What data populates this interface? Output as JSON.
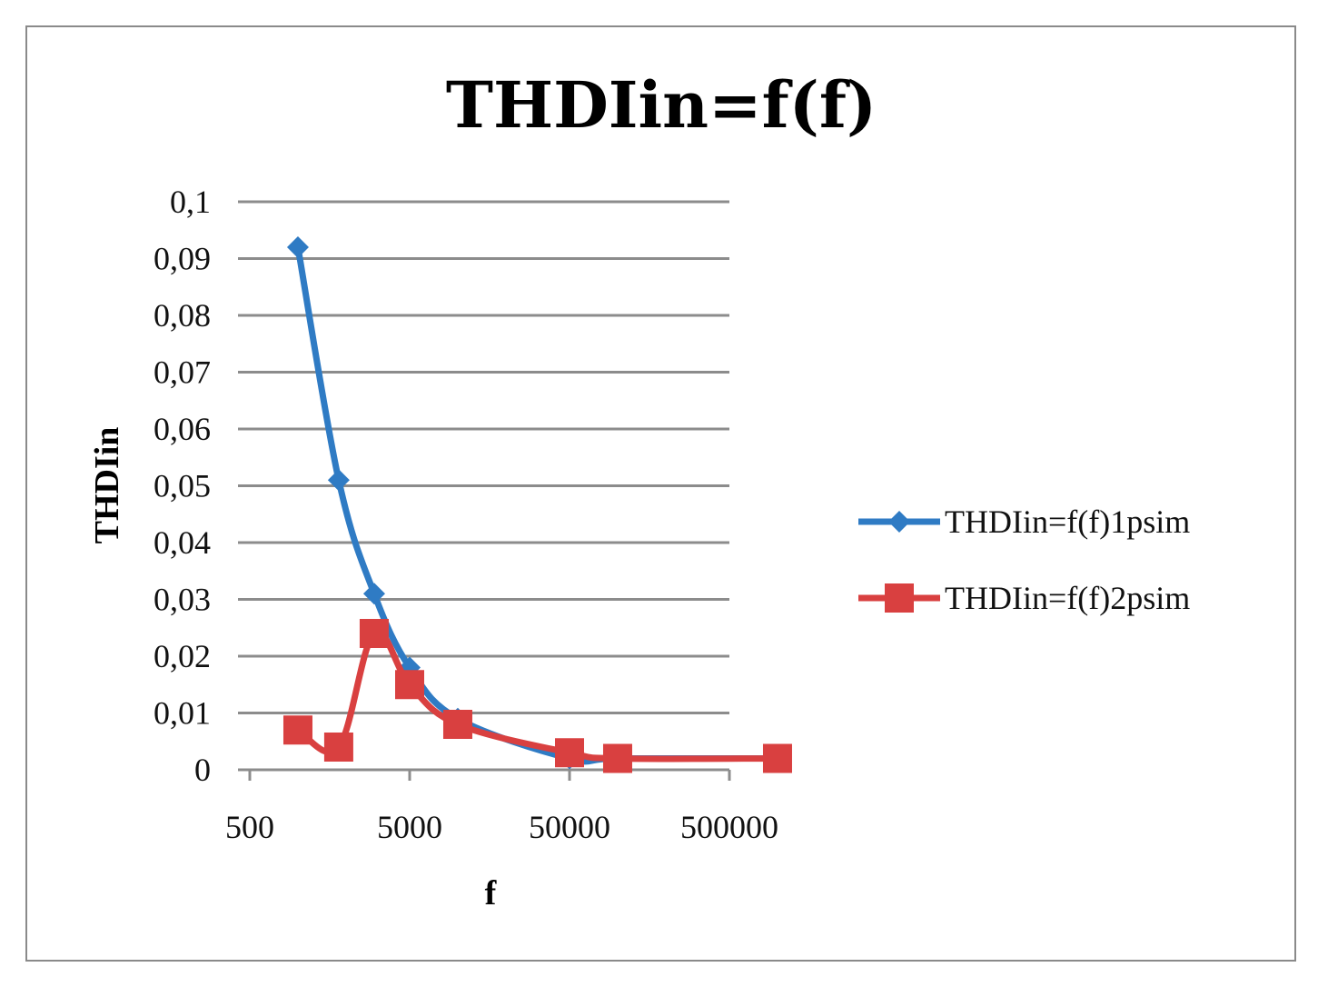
{
  "chart_data": {
    "type": "line",
    "title": "THDIin=f(f)",
    "xlabel": "f",
    "ylabel": "THDIin",
    "x_scale": "log",
    "xlim": [
      500,
      500000
    ],
    "ylim": [
      0,
      0.1
    ],
    "x_ticks": [
      "500",
      "5000",
      "50000",
      "500000"
    ],
    "y_ticks": [
      "0",
      "0,01",
      "0,02",
      "0,03",
      "0,04",
      "0,05",
      "0,06",
      "0,07",
      "0,08",
      "0,09",
      "0,1"
    ],
    "grid": "horizontal",
    "legend_position": "right",
    "series": [
      {
        "name": "THDIin=f(f)1psim",
        "color": "#2f7bc4",
        "marker": "diamond",
        "x": [
          1000,
          1800,
          3000,
          5000,
          10000,
          50000,
          100000,
          1000000
        ],
        "y": [
          0.092,
          0.051,
          0.031,
          0.018,
          0.009,
          0.002,
          0.002,
          0.002
        ]
      },
      {
        "name": "THDIin=f(f)2psim",
        "color": "#d94040",
        "marker": "square",
        "x": [
          1000,
          1800,
          3000,
          5000,
          10000,
          50000,
          100000,
          1000000
        ],
        "y": [
          0.007,
          0.004,
          0.024,
          0.015,
          0.008,
          0.003,
          0.002,
          0.002
        ]
      }
    ]
  }
}
